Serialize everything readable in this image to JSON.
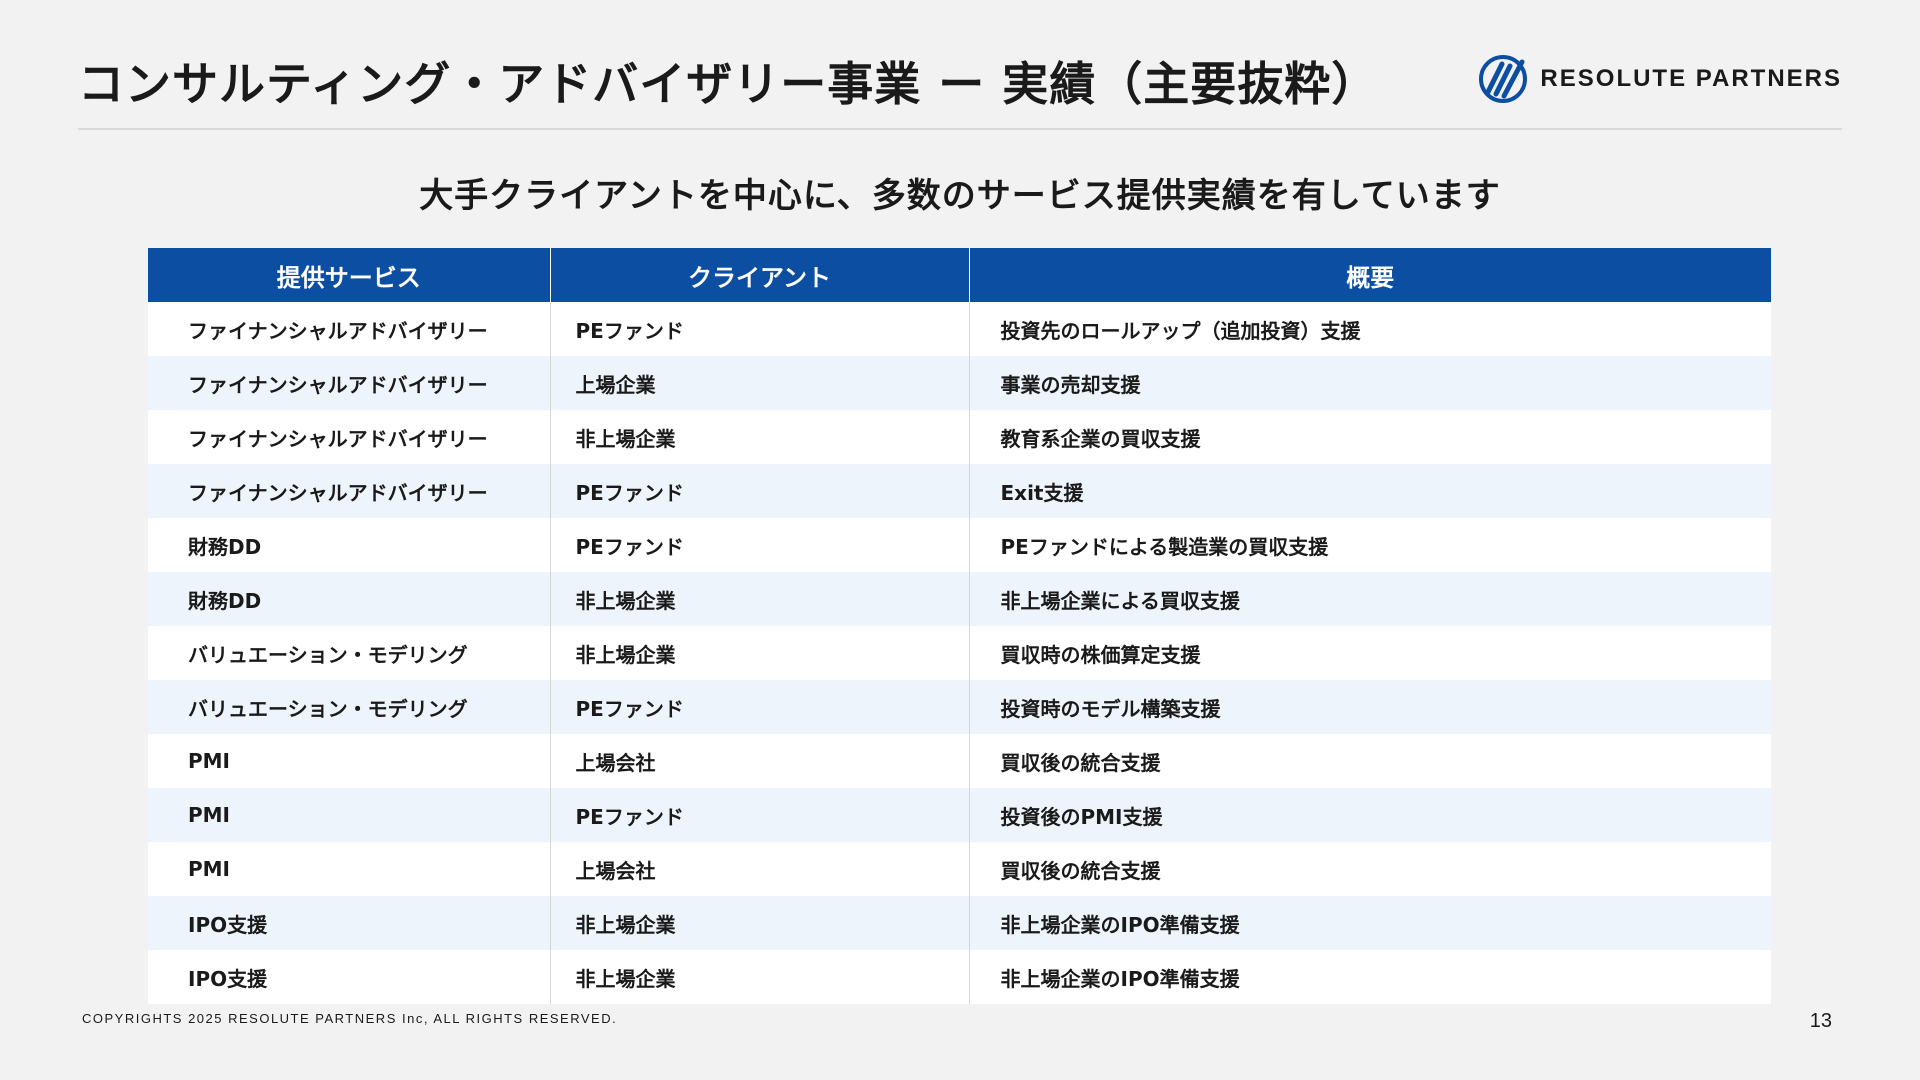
{
  "header": {
    "title": "コンサルティング・アドバイザリー事業 ー 実績（主要抜粋）",
    "logo_text": "RESOLUTE PARTNERS",
    "logo_icon": "resolute-partners-logo-icon"
  },
  "subtitle": "大手クライアントを中心に、多数のサービス提供実績を有しています",
  "table": {
    "headers": [
      "提供サービス",
      "クライアント",
      "概要"
    ],
    "rows": [
      [
        "ファイナンシャルアドバイザリー",
        "PEファンド",
        "投資先のロールアップ（追加投資）支援"
      ],
      [
        "ファイナンシャルアドバイザリー",
        "上場企業",
        "事業の売却支援"
      ],
      [
        "ファイナンシャルアドバイザリー",
        "非上場企業",
        "教育系企業の買収支援"
      ],
      [
        "ファイナンシャルアドバイザリー",
        "PEファンド",
        "Exit支援"
      ],
      [
        "財務DD",
        "PEファンド",
        "PEファンドによる製造業の買収支援"
      ],
      [
        "財務DD",
        "非上場企業",
        "非上場企業による買収支援"
      ],
      [
        "バリュエーション・モデリング",
        "非上場企業",
        "買収時の株価算定支援"
      ],
      [
        "バリュエーション・モデリング",
        "PEファンド",
        "投資時のモデル構築支援"
      ],
      [
        "PMI",
        "上場会社",
        "買収後の統合支援"
      ],
      [
        "PMI",
        "PEファンド",
        "投資後のPMI支援"
      ],
      [
        "PMI",
        "上場会社",
        "買収後の統合支援"
      ],
      [
        "IPO支援",
        "非上場企業",
        "非上場企業のIPO準備支援"
      ],
      [
        "IPO支援",
        "非上場企業",
        "非上場企業のIPO準備支援"
      ]
    ]
  },
  "footer": {
    "copyright": "COPYRIGHTS 2025 RESOLUTE PARTNERS Inc, ALL RIGHTS RESERVED.",
    "page_number": "13"
  },
  "colors": {
    "header_bg": "#0b4ea2",
    "row_alt_bg": "#eef4fb",
    "page_bg": "#f2f2f2",
    "logo_blue": "#0b4ea2"
  }
}
